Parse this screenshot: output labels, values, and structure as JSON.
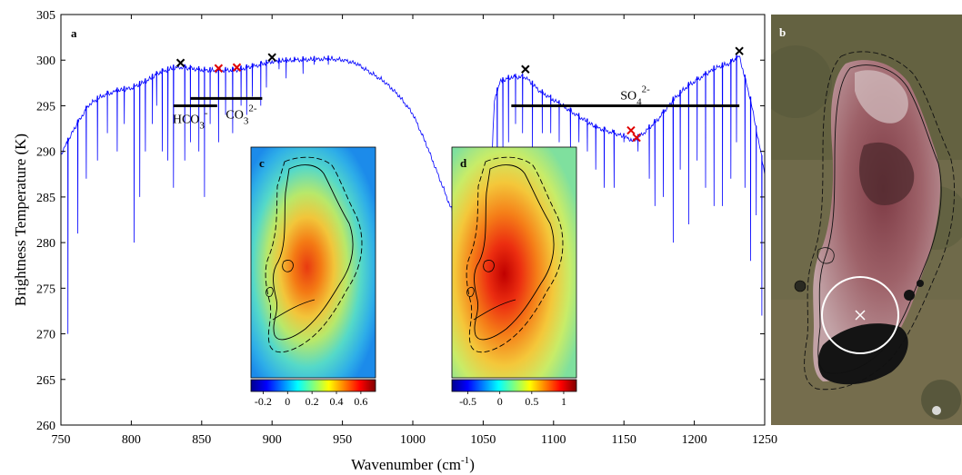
{
  "chart_data": [
    {
      "type": "line",
      "panel": "a",
      "xlabel": "Wavenumber (cm",
      "xlabel_sup": "-1",
      "xlabel_end": ")",
      "ylabel": "Brightness Temperature (K)",
      "xlim": [
        750,
        1250
      ],
      "ylim": [
        260,
        305
      ],
      "xticks": [
        750,
        800,
        850,
        900,
        950,
        1000,
        1050,
        1100,
        1150,
        1200,
        1250
      ],
      "yticks": [
        260,
        265,
        270,
        275,
        280,
        285,
        290,
        295,
        300,
        305
      ],
      "line_color": "#0000ff",
      "continuum": [
        [
          750,
          290
        ],
        [
          760,
          293
        ],
        [
          770,
          295.5
        ],
        [
          780,
          296.5
        ],
        [
          790,
          297
        ],
        [
          800,
          297.3
        ],
        [
          810,
          298
        ],
        [
          820,
          299
        ],
        [
          830,
          299.5
        ],
        [
          835,
          299.6
        ],
        [
          850,
          299.3
        ],
        [
          860,
          299.2
        ],
        [
          875,
          299.3
        ],
        [
          890,
          299.8
        ],
        [
          900,
          300.2
        ],
        [
          920,
          300.4
        ],
        [
          940,
          300.5
        ],
        [
          950,
          300.4
        ],
        [
          960,
          300
        ],
        [
          970,
          299
        ],
        [
          980,
          298
        ],
        [
          990,
          296.5
        ],
        [
          1000,
          294.5
        ],
        [
          1010,
          291
        ],
        [
          1020,
          287
        ],
        [
          1030,
          283
        ],
        [
          1035,
          280
        ],
        [
          1040,
          277
        ],
        [
          1045,
          276
        ],
        [
          1050,
          276
        ],
        [
          1055,
          285
        ],
        [
          1058,
          296
        ],
        [
          1062,
          298
        ],
        [
          1070,
          298.5
        ],
        [
          1080,
          298.5
        ],
        [
          1090,
          297
        ],
        [
          1100,
          296
        ],
        [
          1110,
          295
        ],
        [
          1120,
          294
        ],
        [
          1130,
          293
        ],
        [
          1140,
          292.5
        ],
        [
          1150,
          292
        ],
        [
          1157,
          291.5
        ],
        [
          1165,
          292.5
        ],
        [
          1175,
          294
        ],
        [
          1185,
          296
        ],
        [
          1195,
          297.5
        ],
        [
          1205,
          298.5
        ],
        [
          1215,
          299.5
        ],
        [
          1225,
          300
        ],
        [
          1232,
          300.8
        ],
        [
          1240,
          296
        ],
        [
          1250,
          288
        ]
      ],
      "absorption_lines": [
        [
          755,
          270
        ],
        [
          762,
          281
        ],
        [
          768,
          287
        ],
        [
          776,
          289
        ],
        [
          783,
          292
        ],
        [
          790,
          290
        ],
        [
          795,
          293
        ],
        [
          802,
          280
        ],
        [
          806,
          285
        ],
        [
          810,
          290
        ],
        [
          815,
          293
        ],
        [
          818,
          295
        ],
        [
          822,
          290
        ],
        [
          826,
          289
        ],
        [
          830,
          286
        ],
        [
          838,
          289
        ],
        [
          842,
          291
        ],
        [
          848,
          290
        ],
        [
          852,
          285
        ],
        [
          856,
          293
        ],
        [
          862,
          291
        ],
        [
          867,
          294
        ],
        [
          872,
          292
        ],
        [
          878,
          295
        ],
        [
          882,
          294
        ],
        [
          886,
          296
        ],
        [
          892,
          295
        ],
        [
          896,
          297
        ],
        [
          905,
          299
        ],
        [
          910,
          298
        ],
        [
          916,
          300
        ],
        [
          922,
          298.5
        ],
        [
          930,
          299.5
        ],
        [
          940,
          299.5
        ],
        [
          1060,
          284
        ],
        [
          1064,
          290
        ],
        [
          1068,
          291
        ],
        [
          1073,
          293
        ],
        [
          1078,
          292
        ],
        [
          1085,
          290
        ],
        [
          1092,
          292
        ],
        [
          1098,
          292
        ],
        [
          1104,
          291
        ],
        [
          1112,
          290
        ],
        [
          1118,
          291
        ],
        [
          1124,
          290
        ],
        [
          1130,
          288
        ],
        [
          1136,
          286
        ],
        [
          1143,
          286
        ],
        [
          1150,
          291
        ],
        [
          1160,
          290
        ],
        [
          1168,
          287
        ],
        [
          1172,
          284
        ],
        [
          1178,
          285
        ],
        [
          1185,
          280
        ],
        [
          1190,
          288
        ],
        [
          1196,
          282
        ],
        [
          1202,
          289
        ],
        [
          1208,
          286
        ],
        [
          1214,
          284
        ],
        [
          1220,
          284
        ],
        [
          1226,
          287
        ],
        [
          1230,
          291
        ],
        [
          1236,
          286
        ],
        [
          1240,
          278
        ],
        [
          1244,
          283
        ],
        [
          1248,
          272
        ]
      ],
      "markers": [
        {
          "x": 835,
          "y": 299.7,
          "color": "#000000"
        },
        {
          "x": 862,
          "y": 299.1,
          "color": "#e00000"
        },
        {
          "x": 875,
          "y": 299.2,
          "color": "#e00000"
        },
        {
          "x": 900,
          "y": 300.3,
          "color": "#000000"
        },
        {
          "x": 1080,
          "y": 299.0,
          "color": "#000000"
        },
        {
          "x": 1155,
          "y": 292.3,
          "color": "#e00000"
        },
        {
          "x": 1159,
          "y": 291.5,
          "color": "#e00000"
        },
        {
          "x": 1232,
          "y": 301.0,
          "color": "#000000"
        }
      ],
      "bands": [
        {
          "x0": 830,
          "x1": 861,
          "y": 295.0,
          "label_main": "HCO",
          "label_sub": "3",
          "label_sup": "-"
        },
        {
          "x0": 842,
          "x1": 893,
          "y": 295.8,
          "label_main": "CO",
          "label_sub": "3",
          "label_sup": "2-"
        },
        {
          "x0": 1070,
          "x1": 1232,
          "y": 295.0,
          "label_main": "SO",
          "label_sub": "4",
          "label_sup": "2-"
        }
      ]
    },
    {
      "type": "heatmap",
      "panel": "c",
      "colorbar_ticks": [
        -0.2,
        0,
        0.2,
        0.4,
        0.6
      ],
      "colorbar_range": [
        -0.3,
        0.72
      ],
      "cmap": "jet"
    },
    {
      "type": "heatmap",
      "panel": "d",
      "colorbar_ticks": [
        -0.5,
        0,
        0.5,
        1
      ],
      "colorbar_range": [
        -0.75,
        1.2
      ],
      "cmap": "jet"
    }
  ],
  "panels": {
    "a": "a",
    "b": "b",
    "c": "c",
    "d": "d"
  },
  "colors": {
    "spectrum": "#0000ff",
    "marker_black": "#000000",
    "marker_red": "#e00000",
    "satellite_ground": "#6f6a4a",
    "satellite_lake_salt": "#c9a6a9",
    "satellite_water": "#141414"
  }
}
